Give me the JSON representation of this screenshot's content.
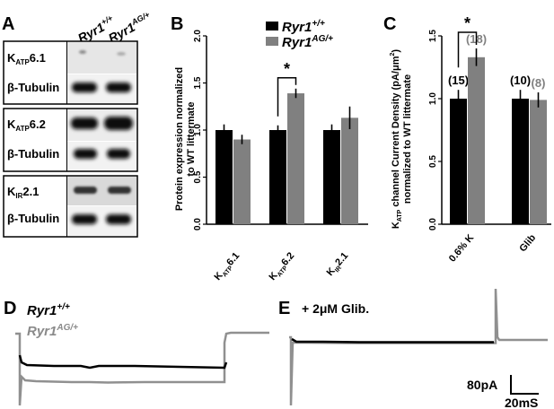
{
  "panels": {
    "a": {
      "label": "A",
      "lanes": [
        "Ryr1+/+",
        "Ryr1AG/+"
      ],
      "blots": [
        {
          "top": "KATP6.1",
          "bottom": "β-Tubulin"
        },
        {
          "top": "KATP6.2",
          "bottom": "β-Tubulin"
        },
        {
          "top": "KIR2.1",
          "bottom": "β-Tubulin"
        }
      ]
    },
    "b": {
      "label": "B"
    },
    "c": {
      "label": "C"
    },
    "d": {
      "label": "D",
      "legend": [
        "Ryr1+/+",
        "Ryr1AG/+"
      ]
    },
    "e": {
      "label": "E",
      "annotation": "+ 2μM Glib."
    },
    "scale_bar": {
      "y": "80pA",
      "x": "20mS"
    }
  },
  "chart_data": [
    {
      "type": "bar",
      "panel": "B",
      "title": "",
      "xlabel": "",
      "ylabel": "Protein expression normalized to WT littermate",
      "ylim": [
        0,
        2.0
      ],
      "yticks": [
        "0.0",
        "0.5",
        "1.0",
        "1.5",
        "2.0"
      ],
      "categories": [
        "KATP6.1",
        "KATP6.2",
        "KIR2.1"
      ],
      "series": [
        {
          "name": "Ryr1+/+",
          "color": "#000000",
          "values": [
            1.0,
            1.0,
            1.0
          ],
          "errors": [
            0.06,
            0.05,
            0.06
          ]
        },
        {
          "name": "Ryr1AG/+",
          "color": "#808080",
          "values": [
            0.9,
            1.39,
            1.13
          ],
          "errors": [
            0.05,
            0.05,
            0.12
          ]
        }
      ],
      "legend": "top-center",
      "annotations": [
        "*"
      ]
    },
    {
      "type": "bar",
      "panel": "C",
      "title": "",
      "xlabel": "",
      "ylabel": "KATP channel Current Density (pA/μm²) normalized to WT littermate",
      "ylim": [
        0,
        1.5
      ],
      "yticks": [
        "0.0",
        "0.5",
        "1.0",
        "1.5"
      ],
      "categories": [
        "0.6% K",
        "Glib"
      ],
      "series": [
        {
          "name": "Ryr1+/+",
          "color": "#000000",
          "values": [
            1.0,
            1.0
          ],
          "errors": [
            0.07,
            0.07
          ],
          "n_labels": [
            "(15)",
            "(10)"
          ]
        },
        {
          "name": "Ryr1AG/+",
          "color": "#808080",
          "values": [
            1.33,
            0.99
          ],
          "errors": [
            0.07,
            0.06
          ],
          "n_labels": [
            "(18)",
            "(8)"
          ]
        }
      ],
      "annotations": [
        "*"
      ]
    }
  ]
}
